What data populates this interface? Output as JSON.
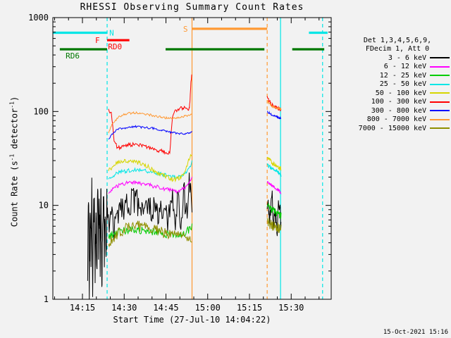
{
  "window": {
    "timestamp": "15-Oct-2021 15:16"
  },
  "chart_data": {
    "type": "line",
    "title": "RHESSI Observing Summary Count Rates",
    "xlabel": "Start Time (27-Jul-10 14:04:22)",
    "ylabel_parts": {
      "p1": "Count Rate (s",
      "sup1": "-1",
      "p2": " detector",
      "sup2": "-1",
      "p3": ")"
    },
    "x_range_minutes": [
      0,
      100
    ],
    "y_log_range": [
      1,
      1000
    ],
    "x_minor_step": 5,
    "x_ticks": [
      {
        "t": 10.63,
        "label": "14:15"
      },
      {
        "t": 25.63,
        "label": "14:30"
      },
      {
        "t": 40.63,
        "label": "14:45"
      },
      {
        "t": 55.63,
        "label": "15:00"
      },
      {
        "t": 70.63,
        "label": "15:15"
      },
      {
        "t": 85.63,
        "label": "15:30"
      }
    ],
    "y_ticks": [
      {
        "v": 1,
        "label": "1"
      },
      {
        "v": 10,
        "label": "10"
      },
      {
        "v": 100,
        "label": "100"
      },
      {
        "v": 1000,
        "label": "1000"
      }
    ],
    "legend": {
      "header1": "Det 1,3,4,5,6,9,",
      "header2": "FDecim 1, Att 0",
      "entries": [
        {
          "label": "3 - 6 keV",
          "color": "#000000"
        },
        {
          "label": "6 - 12 keV",
          "color": "#ff00ff"
        },
        {
          "label": "12 - 25 keV",
          "color": "#00cc00"
        },
        {
          "label": "25 - 50 keV",
          "color": "#00e6e6"
        },
        {
          "label": "50 - 100 keV",
          "color": "#d6d600"
        },
        {
          "label": "100 - 300 keV",
          "color": "#ff0000"
        },
        {
          "label": "300 - 800 keV",
          "color": "#0000ff"
        },
        {
          "label": "800 - 7000 keV",
          "color": "#ff9933"
        },
        {
          "label": "7000 - 15000 keV",
          "color": "#8f8f00"
        }
      ]
    },
    "flags": [
      {
        "label": "N",
        "color": "#00e6e6",
        "y": 690,
        "segments": [
          [
            0,
            19.5
          ],
          [
            92,
            98.7
          ]
        ],
        "label_t": 20.3,
        "label_dy": 4
      },
      {
        "label": "F",
        "color": "#ff0000",
        "y": 575,
        "segments": [],
        "label_t": 15.2,
        "label_dy": 4
      },
      {
        "label": "RD0",
        "color": "#ff0000",
        "y": 575,
        "segments": [
          [
            19.5,
            27.5
          ]
        ],
        "label_t": 19.8,
        "label_dy": 13
      },
      {
        "label": "S",
        "color": "#ff9933",
        "y": 760,
        "segments": [
          [
            50,
            77
          ]
        ],
        "label_t": 46.8,
        "label_dy": 4
      },
      {
        "label": "RD6",
        "color": "#007700",
        "y": 460,
        "segments": [
          [
            2.5,
            19.5
          ],
          [
            40.5,
            76
          ],
          [
            86,
            97.5
          ]
        ],
        "label_t": 4.6,
        "label_dy": 13
      }
    ],
    "vlines": [
      {
        "t": 19.5,
        "color": "#00e6e6",
        "dashed": true
      },
      {
        "t": 50.0,
        "color": "#ff9933",
        "dashed": false
      },
      {
        "t": 77.0,
        "color": "#ff9933",
        "dashed": true
      },
      {
        "t": 81.8,
        "color": "#00e6e6",
        "dashed": false
      },
      {
        "t": 96.9,
        "color": "#00e6e6",
        "dashed": true
      }
    ],
    "series": [
      {
        "name": "3-6 keV",
        "color": "#000000",
        "jitter": 0.15,
        "segments": [
          {
            "t0": 12.5,
            "dt": 0.3,
            "j": 0.2,
            "y": [
              2,
              12,
              1.5,
              8,
              3,
              18,
              1.2,
              6,
              15,
              2,
              9,
              1.5,
              20,
              4,
              11,
              2.5,
              16,
              1.3,
              7,
              13,
              3,
              10,
              1.8,
              14,
              5
            ]
          },
          {
            "t0": 20,
            "dt": 1,
            "y": [
              6,
              9,
              5,
              8,
              10,
              9.5,
              10,
              10.5,
              11,
              11,
              11,
              10.5,
              10,
              10,
              9.5,
              9,
              9,
              8.5,
              8,
              8,
              7.5,
              7,
              8,
              12,
              6,
              14,
              5,
              16,
              8,
              18,
              10
            ]
          },
          {
            "t0": 77,
            "dt": 0.45,
            "y": [
              8,
              11,
              6,
              9,
              12,
              7,
              10,
              8,
              6,
              9,
              7,
              8
            ]
          }
        ]
      },
      {
        "name": "12-25 keV",
        "color": "#00cc00",
        "jitter": 0.04,
        "segments": [
          {
            "t0": 20,
            "dt": 1,
            "y": [
              4.6,
              4.8,
              5.0,
              5.1,
              5.2,
              5.3,
              5.4,
              5.4,
              5.5,
              5.5,
              5.5,
              5.4,
              5.4,
              5.3,
              5.3,
              5.2,
              5.2,
              5.1,
              5.1,
              5.0,
              5.0,
              4.9,
              4.9,
              4.8,
              4.8,
              4.8,
              4.9,
              5.0,
              5.2,
              5.6,
              6.0
            ]
          },
          {
            "t": [
              77,
              77.5,
              78,
              78.5,
              79,
              79.5,
              80,
              80.5,
              81,
              81.3,
              81.6,
              82
            ],
            "y": [
              10,
              9.7,
              9.4,
              9.1,
              8.9,
              8.7,
              8.5,
              8.3,
              8.1,
              8.0,
              7.9,
              7.8
            ]
          }
        ]
      },
      {
        "name": "7000-15000 keV",
        "color": "#8f8f00",
        "jitter": 0.06,
        "segments": [
          {
            "t0": 20,
            "dt": 1,
            "y": [
              4.0,
              4.3,
              4.6,
              4.9,
              5.2,
              5.4,
              5.6,
              5.7,
              5.8,
              5.9,
              6.0,
              6.0,
              5.9,
              5.9,
              5.8,
              5.7,
              5.6,
              5.5,
              5.4,
              5.3,
              5.2,
              5.1,
              5.0,
              4.9,
              4.8,
              4.7,
              4.6,
              4.6,
              4.5,
              4.5,
              4.4
            ]
          },
          {
            "t": [
              77,
              77.5,
              78,
              78.5,
              79,
              79.5,
              80,
              80.5,
              81,
              81.3,
              81.6,
              82
            ],
            "y": [
              6.8,
              6.6,
              6.4,
              6.3,
              6.1,
              6.0,
              5.9,
              5.8,
              5.7,
              5.6,
              5.5,
              5.5
            ]
          }
        ]
      },
      {
        "name": "6-12 keV",
        "color": "#ff00ff",
        "jitter": 0.02,
        "segments": [
          {
            "t0": 20,
            "dt": 1,
            "y": [
              13.5,
              14.5,
              15.5,
              16,
              16.5,
              17,
              17,
              17.5,
              17.5,
              17.5,
              17.5,
              17,
              17,
              17,
              16.5,
              16.5,
              16,
              16,
              15.5,
              15.5,
              15,
              15,
              14.5,
              14.5,
              14,
              14,
              14.5,
              15,
              16,
              18,
              20
            ]
          },
          {
            "t": [
              77,
              77.5,
              78,
              78.5,
              79,
              79.5,
              80,
              80.5,
              81,
              81.3,
              81.6,
              82
            ],
            "y": [
              18,
              17.5,
              17,
              16.5,
              16,
              15.5,
              15,
              14.8,
              14.5,
              14.2,
              14,
              13.8
            ]
          }
        ]
      },
      {
        "name": "25-50 keV",
        "color": "#00e6e6",
        "jitter": 0.02,
        "segments": [
          {
            "t0": 20,
            "dt": 1,
            "y": [
              19,
              20,
              21,
              22,
              22.5,
              23,
              23,
              23.5,
              23.5,
              24,
              24,
              24,
              23.5,
              23.5,
              23,
              23,
              22.5,
              22,
              22,
              21.5,
              21,
              21,
              20.5,
              20,
              20,
              20,
              20.5,
              21,
              22,
              25,
              29
            ]
          },
          {
            "t": [
              77,
              77.5,
              78,
              78.5,
              79,
              79.5,
              80,
              80.5,
              81,
              81.3,
              81.6,
              82
            ],
            "y": [
              27,
              26,
              25.5,
              25,
              24.5,
              24,
              23.5,
              23,
              22.5,
              22,
              21.5,
              21
            ]
          }
        ]
      },
      {
        "name": "50-100 keV",
        "color": "#d6d600",
        "jitter": 0.025,
        "segments": [
          {
            "t0": 20,
            "dt": 1,
            "y": [
              23,
              25,
              26.5,
              28,
              29,
              29.5,
              30,
              30,
              30,
              29.5,
              29,
              28.5,
              28,
              27,
              26,
              25,
              24,
              23,
              22,
              21,
              20.5,
              20,
              19.5,
              19,
              19,
              19.5,
              20,
              22,
              26,
              31,
              35
            ]
          },
          {
            "t": [
              77,
              77.5,
              78,
              78.5,
              79,
              79.5,
              80,
              80.5,
              81,
              81.3,
              81.6,
              82
            ],
            "y": [
              32,
              31,
              30,
              29,
              28,
              27.5,
              27,
              26.5,
              26,
              25.5,
              25,
              24.5
            ]
          }
        ]
      },
      {
        "name": "100-300 keV",
        "color": "#ff0000",
        "jitter": 0.02,
        "segments": [
          {
            "t": [
              20,
              21,
              22,
              23,
              24,
              25,
              26,
              27,
              28,
              29,
              30,
              31,
              32,
              33,
              34,
              35,
              36,
              37,
              38,
              39,
              40,
              41,
              42,
              43,
              44,
              45,
              46,
              47,
              48,
              49,
              49.3,
              49.6,
              49.9
            ],
            "y": [
              105,
              95,
              50,
              42,
              41,
              42,
              43,
              44,
              44,
              45,
              45,
              44,
              44,
              43,
              42,
              41,
              40,
              39,
              38,
              38,
              37,
              36,
              36,
              90,
              100,
              105,
              108,
              110,
              108,
              106,
              130,
              200,
              255
            ]
          },
          {
            "t": [
              77,
              77.5,
              78,
              78.5,
              79,
              79.5,
              80,
              80.5,
              81,
              81.3,
              81.6,
              82
            ],
            "y": [
              140,
              132,
              126,
              120,
              116,
              113,
              111,
              109,
              107,
              106,
              105,
              104
            ]
          }
        ]
      },
      {
        "name": "300-800 keV",
        "color": "#0000ff",
        "jitter": 0.012,
        "segments": [
          {
            "t0": 20,
            "dt": 1,
            "y": [
              50,
              56,
              60,
              63,
              65,
              66,
              67,
              68,
              68,
              69,
              69,
              69,
              68,
              68,
              67,
              67,
              66,
              65,
              64,
              63,
              62,
              61,
              60,
              60,
              59,
              59,
              58,
              58,
              58,
              59,
              60
            ]
          },
          {
            "t": [
              77,
              77.5,
              78,
              78.5,
              79,
              79.5,
              80,
              80.5,
              81,
              81.3,
              81.6,
              82
            ],
            "y": [
              100,
              97,
              95,
              93,
              91,
              90,
              89,
              88,
              87,
              86,
              85,
              85
            ]
          }
        ]
      },
      {
        "name": "800-7000 keV",
        "color": "#ff9933",
        "jitter": 0.012,
        "segments": [
          {
            "t0": 20,
            "dt": 1,
            "y": [
              58,
              70,
              78,
              84,
              88,
              91,
              93,
              95,
              96,
              97,
              97,
              96,
              95,
              94,
              93,
              92,
              90,
              89,
              88,
              87,
              86,
              85,
              85,
              84,
              84,
              85,
              86,
              88,
              90,
              92,
              93
            ]
          },
          {
            "t": [
              77,
              77.5,
              78,
              78.5,
              79,
              79.5,
              80,
              80.5,
              81,
              81.3,
              81.6,
              82
            ],
            "y": [
              130,
              125,
              120,
              116,
              113,
              111,
              110,
              109,
              108,
              107,
              106,
              105
            ]
          }
        ]
      }
    ]
  }
}
